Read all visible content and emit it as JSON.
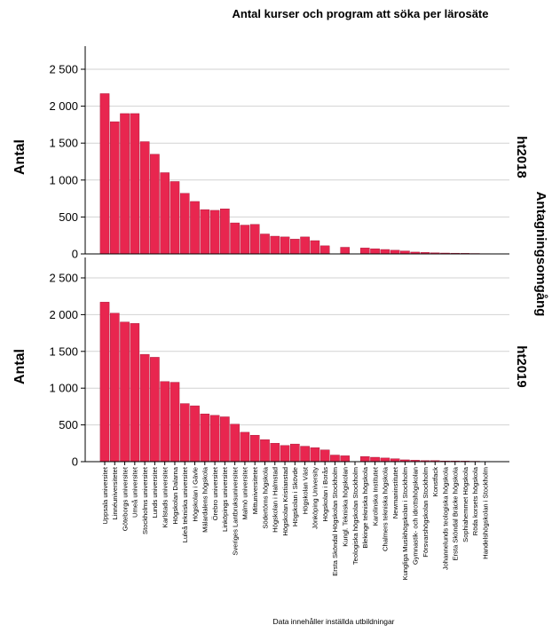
{
  "chart_data": {
    "type": "bar",
    "title": "Antal kurser och program att söka per lärosäte",
    "footnote": "Data innehåller inställda utbildningar",
    "facet_label": "Antagningsomgång",
    "ylabel": "Antal",
    "ylim": [
      0,
      2500
    ],
    "yticks": [
      0,
      500,
      1000,
      1500,
      2000,
      2500
    ],
    "ytick_labels": [
      "0",
      "500",
      "1 000",
      "1 500",
      "2 000",
      "2 500"
    ],
    "grid": true,
    "bar_color": "#E8264F",
    "categories": [
      "Uppsala universitet",
      "Linnéuniversitetet",
      "Göteborgs universitet",
      "Umeå universitet",
      "Stockholms universitet",
      "Lunds universitet",
      "Karlstads universitet",
      "Högskolan Dalarna",
      "Luleå tekniska universitet",
      "Högskolan i Gävle",
      "Mälardalens högskola",
      "Örebro universitet",
      "Linköpings universitet",
      "Sveriges Lantbruksuniversitet",
      "Malmö universitet",
      "Mittuniversitetet",
      "Södertörns högskola",
      "Högskolan i Halmstad",
      "Högskolan Kristianstad",
      "Högskolan i Skövde",
      "Högskolan Väst",
      "Jönköping University",
      "Högskolan i Borås",
      "Ersta Sköndal Högskolan Stockholm",
      "Kungl. Tekniska högskolan",
      "Teologiska högskolan Stockholm",
      "Blekinge tekniska högskola",
      "Karolinska Institutet",
      "Chalmers tekniska högskola",
      "Newmaninstitutet",
      "Kungliga Musikhögskolan i Stockholm",
      "Gymnastik- och idrottshögskolan",
      "Försvarshögskolan Stockholm",
      "Konstfack",
      "Johannelunds teologiska högskola",
      "Ersta Sköndal Bräcke högskola",
      "Sophiahemmet Högskola",
      "Röda korsets högskola",
      "Handelshögskolan i Stockholm"
    ],
    "panels": [
      {
        "label": "ht2018",
        "values": [
          2170,
          1790,
          1900,
          1900,
          1520,
          1350,
          1100,
          980,
          820,
          710,
          600,
          590,
          610,
          420,
          390,
          400,
          270,
          240,
          230,
          200,
          230,
          180,
          110,
          0,
          90,
          0,
          80,
          70,
          60,
          50,
          40,
          25,
          20,
          15,
          12,
          10,
          8,
          6,
          4
        ]
      },
      {
        "label": "ht2019",
        "values": [
          2170,
          2020,
          1900,
          1880,
          1460,
          1420,
          1090,
          1080,
          790,
          760,
          650,
          630,
          610,
          510,
          400,
          360,
          300,
          250,
          220,
          240,
          210,
          190,
          160,
          90,
          80,
          0,
          70,
          60,
          50,
          40,
          25,
          20,
          15,
          15,
          10,
          10,
          8,
          6,
          4
        ]
      }
    ]
  }
}
